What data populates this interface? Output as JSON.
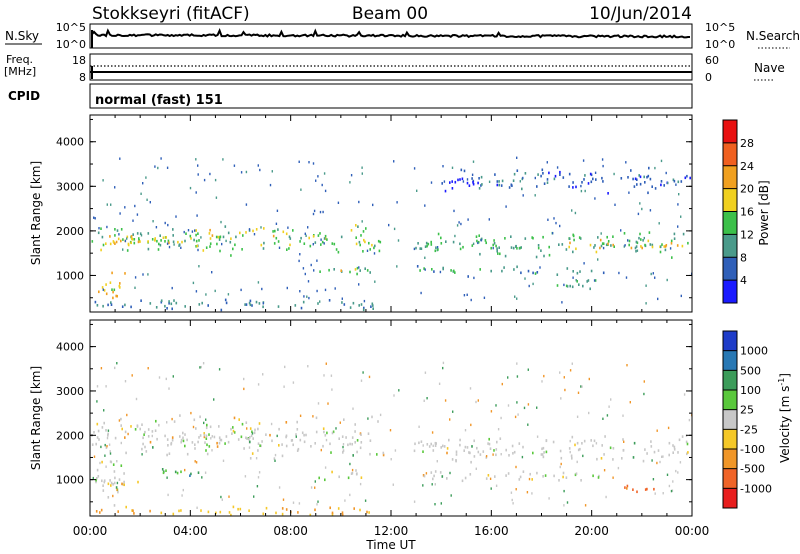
{
  "header": {
    "station": "Stokkseyri (fitACF)",
    "beam": "Beam 00",
    "date": "10/Jun/2014"
  },
  "nsky_panel": {
    "left_label": "N.Sky",
    "right_label": "N.Search",
    "ticks_left": [
      "10^5",
      "10^0"
    ],
    "ticks_right": [
      "10^5",
      "10^0"
    ]
  },
  "freq_panel": {
    "left_label_1": "Freq.",
    "left_label_2": "[MHz]",
    "ticks_left": [
      "18",
      "8"
    ],
    "ticks_right": [
      "60",
      "0"
    ],
    "right_label": "Nave"
  },
  "cpid_panel": {
    "label": "CPID",
    "mode_text": "normal (fast) 151"
  },
  "x_axis": {
    "label": "Time UT",
    "ticks": [
      "00:00",
      "04:00",
      "08:00",
      "12:00",
      "16:00",
      "20:00",
      "00:00"
    ]
  },
  "y_axis": {
    "label": "Slant Range [km]",
    "ticks": [
      "1000",
      "2000",
      "3000",
      "4000"
    ]
  },
  "power_colorbar": {
    "label": "Power [dB]",
    "ticks": [
      "4",
      "8",
      "12",
      "16",
      "20",
      "24",
      "28"
    ],
    "colors": [
      "#1a1aff",
      "#2f5fb8",
      "#4a9a8a",
      "#3cc04a",
      "#f0d020",
      "#f0a020",
      "#f06020",
      "#e81010"
    ]
  },
  "velocity_colorbar": {
    "label": "Velocity [m s",
    "label_sup": "-1",
    "label_end": "]",
    "ticks": [
      "1000",
      "500",
      "100",
      "25",
      "-25",
      "-100",
      "-500",
      "-1000"
    ],
    "colors": [
      "#1e3cc8",
      "#2878b4",
      "#3c9c5a",
      "#5ac83c",
      "#c8c8c8",
      "#f5c828",
      "#f09628",
      "#f06428",
      "#e81e1e"
    ]
  },
  "chart_data": [
    {
      "type": "heatmap",
      "name": "power",
      "xlabel": "Time UT",
      "ylabel": "Slant Range [km]",
      "xlim_hours": [
        0,
        24
      ],
      "ylim_km": [
        180,
        4600
      ],
      "scatter_bands": [
        {
          "t0": 0.0,
          "t1": 11.7,
          "r0": 1450,
          "r1": 2200,
          "value_db": 14
        },
        {
          "t0": 0.4,
          "t1": 3.2,
          "r0": 1700,
          "r1": 1950,
          "value_db": 20
        },
        {
          "t0": 4.5,
          "t1": 7.5,
          "r0": 1900,
          "r1": 2100,
          "value_db": 18
        },
        {
          "t0": 8.5,
          "t1": 11.7,
          "r0": 1050,
          "r1": 1250,
          "value_db": 12
        },
        {
          "t0": 9.0,
          "t1": 10.8,
          "r0": 1120,
          "r1": 1200,
          "value_db": 20
        },
        {
          "t0": 0.2,
          "t1": 1.4,
          "r0": 350,
          "r1": 1150,
          "value_db": 18
        },
        {
          "t0": 12.9,
          "t1": 24.0,
          "r0": 1400,
          "r1": 2050,
          "value_db": 12
        },
        {
          "t0": 19.0,
          "t1": 23.7,
          "r0": 1550,
          "r1": 1850,
          "value_db": 20
        },
        {
          "t0": 12.9,
          "t1": 20.5,
          "r0": 1000,
          "r1": 1250,
          "value_db": 10
        },
        {
          "t0": 18.4,
          "t1": 20.2,
          "r0": 650,
          "r1": 1000,
          "value_db": 12
        },
        {
          "t0": 0.0,
          "t1": 11.5,
          "r0": 220,
          "r1": 500,
          "value_db": 8
        },
        {
          "t0": 14.0,
          "t1": 24.0,
          "r0": 2850,
          "r1": 3450,
          "value_db": 6
        }
      ],
      "data_gaps": [
        [
          11.72,
          11.85
        ],
        [
          12.3,
          12.85
        ]
      ]
    },
    {
      "type": "heatmap",
      "name": "velocity",
      "xlabel": "Time UT",
      "ylabel": "Slant Range [km]",
      "xlim_hours": [
        0,
        24
      ],
      "ylim_km": [
        180,
        4600
      ],
      "scatter_bands": [
        {
          "t0": 0.0,
          "t1": 11.7,
          "r0": 1450,
          "r1": 2500,
          "value_ms": 0
        },
        {
          "t0": 12.9,
          "t1": 24.0,
          "r0": 1400,
          "r1": 2050,
          "value_ms": 0
        },
        {
          "t0": 8.5,
          "t1": 11.7,
          "r0": 1000,
          "r1": 1250,
          "value_ms": 0
        },
        {
          "t0": 12.9,
          "t1": 20.5,
          "r0": 950,
          "r1": 1250,
          "value_ms": 0
        },
        {
          "t0": 0.2,
          "t1": 1.5,
          "r0": 350,
          "r1": 1600,
          "value_ms": 0
        },
        {
          "t0": 0.6,
          "t1": 2.4,
          "r0": 900,
          "r1": 1000,
          "value_ms": -100
        },
        {
          "t0": 2.8,
          "t1": 3.6,
          "r0": 900,
          "r1": 1400,
          "value_ms": 100
        },
        {
          "t0": 3.8,
          "t1": 4.3,
          "r0": 950,
          "r1": 1350,
          "value_ms": 500
        },
        {
          "t0": 21.0,
          "t1": 22.6,
          "r0": 700,
          "r1": 950,
          "value_ms": -500
        },
        {
          "t0": 0.0,
          "t1": 11.5,
          "r0": 200,
          "r1": 420,
          "value_ms": -100
        }
      ],
      "data_gaps": [
        [
          11.72,
          11.85
        ],
        [
          12.3,
          12.85
        ]
      ]
    }
  ]
}
